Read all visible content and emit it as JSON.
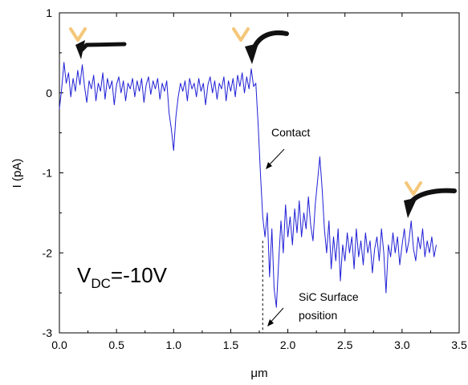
{
  "chart_data": {
    "type": "line",
    "xlabel": "μm",
    "ylabel": "I (pA)",
    "xlim": [
      0.0,
      3.5
    ],
    "ylim": [
      -3,
      1
    ],
    "xticks": [
      "0.0",
      "0.5",
      "1.0",
      "1.5",
      "2.0",
      "2.5",
      "3.0",
      "3.5"
    ],
    "yticks": [
      "-3",
      "-2",
      "-1",
      "0",
      "1"
    ],
    "grid": false,
    "colors": {
      "series": "#1f1fd6",
      "arrow": "#111111",
      "tip": "#f5c77a",
      "dashed": "#000000"
    },
    "series": [
      {
        "values": [
          [
            0.0,
            -0.2
          ],
          [
            0.02,
            0.05
          ],
          [
            0.04,
            0.38
          ],
          [
            0.06,
            0.12
          ],
          [
            0.08,
            0.25
          ],
          [
            0.1,
            -0.05
          ],
          [
            0.12,
            0.18
          ],
          [
            0.14,
            0.02
          ],
          [
            0.16,
            0.28
          ],
          [
            0.18,
            0.1
          ],
          [
            0.2,
            0.35
          ],
          [
            0.22,
            0.08
          ],
          [
            0.24,
            -0.12
          ],
          [
            0.26,
            0.15
          ],
          [
            0.28,
            0.05
          ],
          [
            0.3,
            0.22
          ],
          [
            0.32,
            -0.1
          ],
          [
            0.34,
            0.12
          ],
          [
            0.36,
            0.02
          ],
          [
            0.38,
            0.25
          ],
          [
            0.4,
            -0.08
          ],
          [
            0.42,
            0.18
          ],
          [
            0.44,
            0.05
          ],
          [
            0.46,
            0.15
          ],
          [
            0.48,
            -0.15
          ],
          [
            0.5,
            0.1
          ],
          [
            0.52,
            0.2
          ],
          [
            0.54,
            0.0
          ],
          [
            0.56,
            0.15
          ],
          [
            0.58,
            -0.1
          ],
          [
            0.6,
            0.12
          ],
          [
            0.62,
            0.05
          ],
          [
            0.64,
            0.18
          ],
          [
            0.66,
            -0.05
          ],
          [
            0.68,
            0.15
          ],
          [
            0.7,
            0.02
          ],
          [
            0.72,
            0.18
          ],
          [
            0.74,
            -0.12
          ],
          [
            0.76,
            0.1
          ],
          [
            0.78,
            0.2
          ],
          [
            0.8,
            -0.02
          ],
          [
            0.82,
            0.15
          ],
          [
            0.84,
            0.05
          ],
          [
            0.86,
            0.18
          ],
          [
            0.88,
            -0.08
          ],
          [
            0.9,
            0.12
          ],
          [
            0.92,
            0.02
          ],
          [
            0.94,
            0.15
          ],
          [
            0.96,
            -0.25
          ],
          [
            0.98,
            -0.45
          ],
          [
            1.0,
            -0.72
          ],
          [
            1.02,
            -0.3
          ],
          [
            1.04,
            -0.05
          ],
          [
            1.06,
            0.12
          ],
          [
            1.08,
            0.02
          ],
          [
            1.1,
            0.15
          ],
          [
            1.12,
            -0.1
          ],
          [
            1.14,
            0.18
          ],
          [
            1.16,
            0.05
          ],
          [
            1.18,
            0.12
          ],
          [
            1.2,
            -0.05
          ],
          [
            1.22,
            0.18
          ],
          [
            1.24,
            0.02
          ],
          [
            1.26,
            0.12
          ],
          [
            1.28,
            -0.15
          ],
          [
            1.3,
            0.1
          ],
          [
            1.32,
            0.2
          ],
          [
            1.34,
            0.0
          ],
          [
            1.36,
            0.15
          ],
          [
            1.38,
            -0.08
          ],
          [
            1.4,
            0.12
          ],
          [
            1.42,
            0.05
          ],
          [
            1.44,
            0.2
          ],
          [
            1.46,
            -0.1
          ],
          [
            1.48,
            0.15
          ],
          [
            1.5,
            0.02
          ],
          [
            1.52,
            0.18
          ],
          [
            1.54,
            -0.05
          ],
          [
            1.56,
            0.22
          ],
          [
            1.58,
            0.08
          ],
          [
            1.6,
            0.25
          ],
          [
            1.62,
            0.0
          ],
          [
            1.64,
            0.2
          ],
          [
            1.66,
            0.05
          ],
          [
            1.68,
            0.3
          ],
          [
            1.7,
            0.08
          ],
          [
            1.72,
            0.12
          ],
          [
            1.74,
            -0.4
          ],
          [
            1.76,
            -1.0
          ],
          [
            1.78,
            -1.55
          ],
          [
            1.8,
            -1.8
          ],
          [
            1.82,
            -1.5
          ],
          [
            1.84,
            -2.3
          ],
          [
            1.86,
            -1.7
          ],
          [
            1.88,
            -2.45
          ],
          [
            1.9,
            -2.68
          ],
          [
            1.92,
            -2.1
          ],
          [
            1.94,
            -1.6
          ],
          [
            1.96,
            -2.0
          ],
          [
            1.98,
            -1.4
          ],
          [
            2.0,
            -1.8
          ],
          [
            2.02,
            -1.55
          ],
          [
            2.04,
            -1.9
          ],
          [
            2.06,
            -1.45
          ],
          [
            2.08,
            -1.75
          ],
          [
            2.1,
            -1.35
          ],
          [
            2.12,
            -1.8
          ],
          [
            2.14,
            -1.5
          ],
          [
            2.16,
            -1.7
          ],
          [
            2.18,
            -1.3
          ],
          [
            2.2,
            -1.65
          ],
          [
            2.22,
            -1.85
          ],
          [
            2.24,
            -1.4
          ],
          [
            2.26,
            -1.1
          ],
          [
            2.28,
            -0.8
          ],
          [
            2.3,
            -1.2
          ],
          [
            2.32,
            -1.7
          ],
          [
            2.34,
            -2.0
          ],
          [
            2.36,
            -1.6
          ],
          [
            2.38,
            -2.2
          ],
          [
            2.4,
            -1.8
          ],
          [
            2.42,
            -2.1
          ],
          [
            2.44,
            -1.7
          ],
          [
            2.46,
            -2.35
          ],
          [
            2.48,
            -1.9
          ],
          [
            2.5,
            -2.1
          ],
          [
            2.52,
            -1.75
          ],
          [
            2.54,
            -2.0
          ],
          [
            2.56,
            -1.8
          ],
          [
            2.58,
            -2.2
          ],
          [
            2.6,
            -1.7
          ],
          [
            2.62,
            -2.05
          ],
          [
            2.64,
            -1.85
          ],
          [
            2.66,
            -2.15
          ],
          [
            2.68,
            -1.75
          ],
          [
            2.7,
            -2.0
          ],
          [
            2.72,
            -1.85
          ],
          [
            2.74,
            -2.25
          ],
          [
            2.76,
            -1.95
          ],
          [
            2.78,
            -1.8
          ],
          [
            2.8,
            -2.1
          ],
          [
            2.82,
            -1.7
          ],
          [
            2.84,
            -2.0
          ],
          [
            2.86,
            -2.5
          ],
          [
            2.88,
            -1.9
          ],
          [
            2.9,
            -2.05
          ],
          [
            2.92,
            -1.75
          ],
          [
            2.94,
            -2.0
          ],
          [
            2.96,
            -1.8
          ],
          [
            2.98,
            -2.15
          ],
          [
            3.0,
            -1.9
          ],
          [
            3.02,
            -1.7
          ],
          [
            3.04,
            -2.0
          ],
          [
            3.06,
            -1.85
          ],
          [
            3.08,
            -1.6
          ],
          [
            3.1,
            -1.95
          ],
          [
            3.12,
            -2.1
          ],
          [
            3.14,
            -1.8
          ],
          [
            3.16,
            -1.95
          ],
          [
            3.18,
            -1.7
          ],
          [
            3.2,
            -2.05
          ],
          [
            3.22,
            -1.85
          ],
          [
            3.24,
            -2.0
          ],
          [
            3.26,
            -1.8
          ],
          [
            3.28,
            -2.05
          ],
          [
            3.3,
            -1.9
          ]
        ]
      }
    ],
    "annotations": {
      "contact": "Contact",
      "surface_line1": "SiC Surface",
      "surface_line2": "position",
      "vdc_main": "V",
      "vdc_sub": "DC",
      "vdc_value": "=-10V"
    },
    "marker": {
      "x": 1.78,
      "y_top": -1.85,
      "y_bottom": -3
    }
  }
}
